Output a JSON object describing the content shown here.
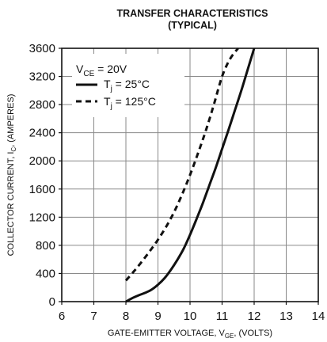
{
  "chart_data": {
    "type": "line",
    "title": "TRANSFER CHARACTERISTICS",
    "subtitle": "(TYPICAL)",
    "xlabel": {
      "base": "GATE-EMITTER VOLTAGE, V",
      "sub": "GE",
      "suffix": ", (VOLTS)"
    },
    "ylabel": {
      "base": "COLLECTOR CURRENT, I",
      "sub": "C",
      "suffix": ", (AMPERES)"
    },
    "xlim": [
      6,
      14
    ],
    "ylim": [
      0,
      3600
    ],
    "x_ticks": [
      "6",
      "7",
      "8",
      "9",
      "10",
      "11",
      "12",
      "13",
      "14"
    ],
    "y_ticks": [
      "0",
      "400",
      "800",
      "1200",
      "1600",
      "2000",
      "2400",
      "2800",
      "3200",
      "3600"
    ],
    "grid": true,
    "legend_position": "top-left",
    "legend_condition": {
      "base": "V",
      "sub": "CE",
      "suffix": " = 20V"
    },
    "series": [
      {
        "name": "Tj = 25°C",
        "label": {
          "base": "T",
          "sub": "j",
          "suffix": " = 25°C"
        },
        "style": "solid",
        "color": "#111111",
        "x": [
          8.0,
          8.2,
          8.4,
          8.6,
          8.8,
          9.0,
          9.2,
          9.4,
          9.6,
          9.8,
          10.0,
          10.2,
          10.4,
          10.6,
          10.8,
          11.0,
          11.2,
          11.4,
          11.6,
          11.8,
          12.0
        ],
        "y": [
          0,
          50,
          90,
          125,
          170,
          240,
          330,
          450,
          590,
          750,
          950,
          1170,
          1400,
          1650,
          1900,
          2170,
          2440,
          2720,
          3000,
          3300,
          3600
        ]
      },
      {
        "name": "Tj = 125°C",
        "label": {
          "base": "T",
          "sub": "j",
          "suffix": " = 125°C"
        },
        "style": "dashed",
        "color": "#111111",
        "x": [
          8.0,
          8.25,
          8.5,
          8.75,
          9.0,
          9.25,
          9.5,
          9.75,
          10.0,
          10.25,
          10.5,
          10.75,
          11.0,
          11.25,
          11.5
        ],
        "y": [
          300,
          430,
          570,
          720,
          880,
          1060,
          1270,
          1520,
          1800,
          2110,
          2440,
          2810,
          3200,
          3450,
          3600
        ]
      }
    ]
  }
}
